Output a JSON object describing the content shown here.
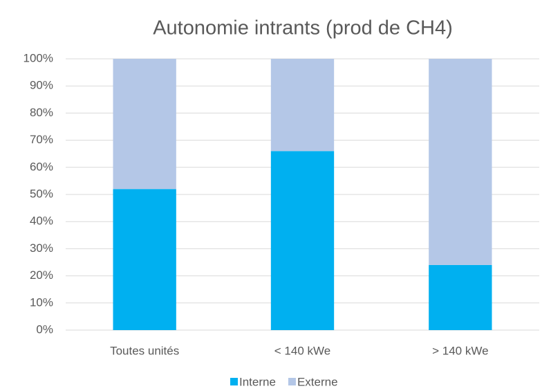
{
  "chart_data": {
    "type": "stacked_bar",
    "title": "Autonomie intrants (prod de CH4)",
    "categories": [
      "Toutes unités",
      "< 140 kWe",
      "> 140 kWe"
    ],
    "series": [
      {
        "name": "Interne",
        "color": "#00b0f0",
        "values": [
          52,
          66,
          24
        ]
      },
      {
        "name": "Externe",
        "color": "#b4c7e7",
        "values": [
          48,
          34,
          76
        ]
      }
    ],
    "ylim": [
      0,
      100
    ],
    "yticks": [
      {
        "value": 0,
        "label": "0%"
      },
      {
        "value": 10,
        "label": "10%"
      },
      {
        "value": 20,
        "label": "20%"
      },
      {
        "value": 30,
        "label": "30%"
      },
      {
        "value": 40,
        "label": "40%"
      },
      {
        "value": 50,
        "label": "50%"
      },
      {
        "value": 60,
        "label": "60%"
      },
      {
        "value": 70,
        "label": "70%"
      },
      {
        "value": 80,
        "label": "80%"
      },
      {
        "value": 90,
        "label": "90%"
      },
      {
        "value": 100,
        "label": "100%"
      }
    ],
    "grid": true,
    "legend": "bottom"
  }
}
